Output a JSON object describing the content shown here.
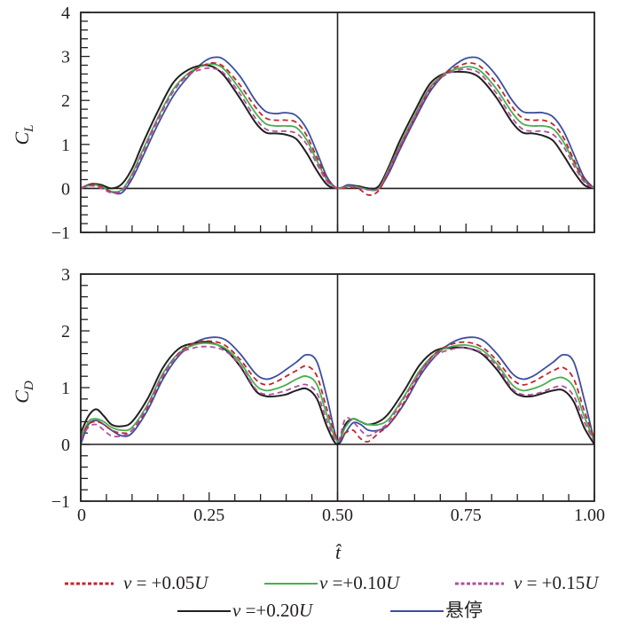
{
  "chart_data": [
    {
      "type": "line",
      "panel": "top",
      "ylabel": "C_L",
      "ylabel_main": "C",
      "ylabel_sub": "L",
      "xlim": [
        0,
        1.0
      ],
      "ylim": [
        -1,
        4
      ],
      "yticks": [
        -1,
        0,
        1,
        2,
        3,
        4
      ],
      "ytick_labels": [
        "−1",
        "0",
        "1",
        "2",
        "3",
        "4"
      ],
      "x": [
        0,
        0.02,
        0.04,
        0.06,
        0.08,
        0.1,
        0.12,
        0.15,
        0.18,
        0.21,
        0.24,
        0.26,
        0.28,
        0.31,
        0.34,
        0.36,
        0.38,
        0.4,
        0.42,
        0.44,
        0.46,
        0.48,
        0.5,
        0.52,
        0.54,
        0.56,
        0.58,
        0.6,
        0.62,
        0.65,
        0.68,
        0.71,
        0.74,
        0.76,
        0.78,
        0.81,
        0.84,
        0.86,
        0.88,
        0.9,
        0.92,
        0.94,
        0.96,
        0.98,
        1.0
      ],
      "series": [
        {
          "name": "v = +0.05U",
          "color": "#c0272d",
          "dash": "dashed",
          "values": [
            0,
            0.08,
            0.04,
            -0.08,
            -0.05,
            0.3,
            0.8,
            1.55,
            2.2,
            2.6,
            2.8,
            2.85,
            2.75,
            2.35,
            1.85,
            1.6,
            1.55,
            1.55,
            1.5,
            1.2,
            0.7,
            0.2,
            0,
            0.02,
            0.0,
            -0.15,
            -0.05,
            0.4,
            0.9,
            1.6,
            2.25,
            2.62,
            2.8,
            2.85,
            2.75,
            2.38,
            1.85,
            1.6,
            1.55,
            1.55,
            1.45,
            1.15,
            0.65,
            0.2,
            0
          ]
        },
        {
          "name": "v = +0.10U",
          "color": "#4bae4f",
          "dash": "solid",
          "values": [
            0,
            0.08,
            0.05,
            -0.07,
            -0.03,
            0.33,
            0.85,
            1.6,
            2.25,
            2.62,
            2.8,
            2.82,
            2.7,
            2.25,
            1.72,
            1.47,
            1.42,
            1.42,
            1.38,
            1.1,
            0.62,
            0.18,
            0,
            0.05,
            0.03,
            -0.03,
            0.0,
            0.45,
            0.95,
            1.65,
            2.3,
            2.62,
            2.74,
            2.76,
            2.65,
            2.25,
            1.72,
            1.47,
            1.42,
            1.42,
            1.35,
            1.05,
            0.6,
            0.18,
            0
          ]
        },
        {
          "name": "v = +0.15U",
          "color": "#b14f9f",
          "dash": "dashed",
          "values": [
            0,
            0.06,
            0.0,
            -0.1,
            -0.05,
            0.3,
            0.82,
            1.58,
            2.2,
            2.58,
            2.72,
            2.72,
            2.6,
            2.15,
            1.6,
            1.35,
            1.3,
            1.3,
            1.25,
            1.0,
            0.55,
            0.15,
            0,
            0.05,
            0.02,
            -0.03,
            0.0,
            0.43,
            0.93,
            1.62,
            2.28,
            2.58,
            2.7,
            2.7,
            2.58,
            2.15,
            1.6,
            1.35,
            1.3,
            1.3,
            1.22,
            0.95,
            0.52,
            0.15,
            0
          ]
        },
        {
          "name": "v = +0.20U",
          "color": "#231f20",
          "dash": "solid",
          "values": [
            0,
            0.1,
            0.08,
            0.0,
            0.1,
            0.45,
            1.0,
            1.75,
            2.4,
            2.7,
            2.8,
            2.75,
            2.55,
            2.05,
            1.5,
            1.27,
            1.25,
            1.22,
            1.12,
            0.8,
            0.4,
            0.08,
            0,
            0.05,
            0.05,
            0.0,
            0.05,
            0.5,
            1.05,
            1.75,
            2.38,
            2.62,
            2.65,
            2.62,
            2.48,
            2.05,
            1.5,
            1.27,
            1.25,
            1.2,
            1.08,
            0.75,
            0.38,
            0.08,
            0
          ]
        },
        {
          "name": "悬停",
          "color": "#3c4ea0",
          "dash": "solid",
          "values": [
            0,
            0.08,
            0.05,
            -0.08,
            -0.1,
            0.22,
            0.7,
            1.45,
            2.1,
            2.55,
            2.88,
            2.98,
            2.92,
            2.55,
            2.0,
            1.75,
            1.7,
            1.72,
            1.65,
            1.35,
            0.82,
            0.25,
            0,
            0.08,
            0.05,
            0.0,
            0.0,
            0.35,
            0.85,
            1.55,
            2.2,
            2.62,
            2.9,
            2.98,
            2.92,
            2.55,
            2.0,
            1.75,
            1.72,
            1.72,
            1.62,
            1.3,
            0.78,
            0.25,
            0
          ]
        }
      ]
    },
    {
      "type": "line",
      "panel": "bottom",
      "ylabel": "C_D",
      "ylabel_main": "C",
      "ylabel_sub": "D",
      "xlabel": "t̂",
      "xlim": [
        0,
        1.0
      ],
      "ylim": [
        -1,
        3
      ],
      "yticks": [
        -1,
        0,
        1,
        2,
        3
      ],
      "ytick_labels": [
        "−1",
        "0",
        "1",
        "2",
        "3"
      ],
      "xticks": [
        0,
        0.25,
        0.5,
        0.75,
        1.0
      ],
      "xtick_labels": [
        "0",
        "0.25",
        "0.50",
        "0.75",
        "1.00"
      ],
      "x": [
        0,
        0.015,
        0.03,
        0.045,
        0.06,
        0.08,
        0.1,
        0.13,
        0.16,
        0.19,
        0.22,
        0.25,
        0.28,
        0.31,
        0.34,
        0.36,
        0.38,
        0.4,
        0.42,
        0.44,
        0.46,
        0.48,
        0.5,
        0.515,
        0.53,
        0.545,
        0.56,
        0.58,
        0.6,
        0.63,
        0.66,
        0.69,
        0.72,
        0.75,
        0.78,
        0.81,
        0.84,
        0.86,
        0.88,
        0.9,
        0.92,
        0.94,
        0.96,
        0.98,
        1.0
      ],
      "series": [
        {
          "name": "v = +0.05U",
          "color": "#c0272d",
          "dash": "dashed",
          "values": [
            0.1,
            0.35,
            0.4,
            0.35,
            0.25,
            0.2,
            0.25,
            0.65,
            1.2,
            1.6,
            1.78,
            1.82,
            1.75,
            1.5,
            1.15,
            1.05,
            1.1,
            1.2,
            1.3,
            1.38,
            1.2,
            0.6,
            0.1,
            0.2,
            0.25,
            0.1,
            0.05,
            0.2,
            0.35,
            0.75,
            1.25,
            1.6,
            1.76,
            1.8,
            1.72,
            1.48,
            1.15,
            1.05,
            1.1,
            1.2,
            1.3,
            1.35,
            1.15,
            0.6,
            0.1
          ]
        },
        {
          "name": "v = +0.10U",
          "color": "#4bae4f",
          "dash": "solid",
          "values": [
            0.1,
            0.4,
            0.45,
            0.4,
            0.3,
            0.25,
            0.3,
            0.7,
            1.25,
            1.6,
            1.75,
            1.78,
            1.7,
            1.45,
            1.05,
            0.95,
            0.98,
            1.05,
            1.15,
            1.2,
            1.05,
            0.5,
            0.05,
            0.3,
            0.45,
            0.4,
            0.35,
            0.35,
            0.45,
            0.85,
            1.3,
            1.6,
            1.72,
            1.75,
            1.67,
            1.42,
            1.05,
            0.95,
            0.98,
            1.05,
            1.15,
            1.17,
            1.0,
            0.5,
            0.05
          ]
        },
        {
          "name": "v = +0.15U",
          "color": "#b14f9f",
          "dash": "dashed",
          "values": [
            0.1,
            0.3,
            0.35,
            0.25,
            0.15,
            0.15,
            0.25,
            0.68,
            1.22,
            1.58,
            1.7,
            1.72,
            1.65,
            1.4,
            0.98,
            0.88,
            0.9,
            0.95,
            1.02,
            1.05,
            0.9,
            0.4,
            0.05,
            0.45,
            0.4,
            0.25,
            0.15,
            0.25,
            0.4,
            0.82,
            1.27,
            1.56,
            1.67,
            1.7,
            1.62,
            1.38,
            0.98,
            0.88,
            0.88,
            0.93,
            1.0,
            1.02,
            0.85,
            0.4,
            0.05
          ]
        },
        {
          "name": "v = +0.20U",
          "color": "#231f20",
          "dash": "solid",
          "values": [
            0.2,
            0.5,
            0.62,
            0.5,
            0.35,
            0.32,
            0.4,
            0.8,
            1.35,
            1.68,
            1.78,
            1.8,
            1.68,
            1.38,
            0.95,
            0.85,
            0.85,
            0.88,
            0.95,
            0.98,
            0.8,
            0.3,
            0.0,
            0.35,
            0.45,
            0.4,
            0.35,
            0.4,
            0.55,
            0.95,
            1.4,
            1.65,
            1.7,
            1.7,
            1.6,
            1.32,
            0.95,
            0.85,
            0.85,
            0.9,
            0.95,
            0.95,
            0.75,
            0.3,
            0.0
          ]
        },
        {
          "name": "悬停",
          "color": "#3c4ea0",
          "dash": "solid",
          "values": [
            0.0,
            0.35,
            0.42,
            0.35,
            0.25,
            0.15,
            0.2,
            0.6,
            1.15,
            1.55,
            1.78,
            1.88,
            1.85,
            1.6,
            1.25,
            1.15,
            1.2,
            1.32,
            1.45,
            1.58,
            1.45,
            0.8,
            0.05,
            0.2,
            0.38,
            0.35,
            0.25,
            0.25,
            0.35,
            0.72,
            1.2,
            1.55,
            1.78,
            1.88,
            1.85,
            1.6,
            1.25,
            1.15,
            1.2,
            1.32,
            1.45,
            1.58,
            1.45,
            0.8,
            0.05
          ]
        }
      ]
    }
  ],
  "legend": {
    "placement": "bottom",
    "entries": [
      {
        "label": "v = +0.05U",
        "var": "v",
        "eq": " = +0.05",
        "unit": "U",
        "color": "#c0272d",
        "dash": "dotted"
      },
      {
        "label": "v =+0.10U",
        "var": "v",
        "eq": " =+0.10",
        "unit": "U",
        "color": "#4bae4f",
        "dash": "solid"
      },
      {
        "label": "v = +0.15U",
        "var": "v",
        "eq": " = +0.15",
        "unit": "U",
        "color": "#b14f9f",
        "dash": "dotted"
      },
      {
        "label": "v =+0.20U",
        "var": "v",
        "eq": " =+0.20",
        "unit": "U",
        "color": "#231f20",
        "dash": "solid"
      },
      {
        "label": "悬停",
        "var": "",
        "eq": "悬停",
        "unit": "",
        "color": "#3c4ea0",
        "dash": "solid"
      }
    ]
  }
}
